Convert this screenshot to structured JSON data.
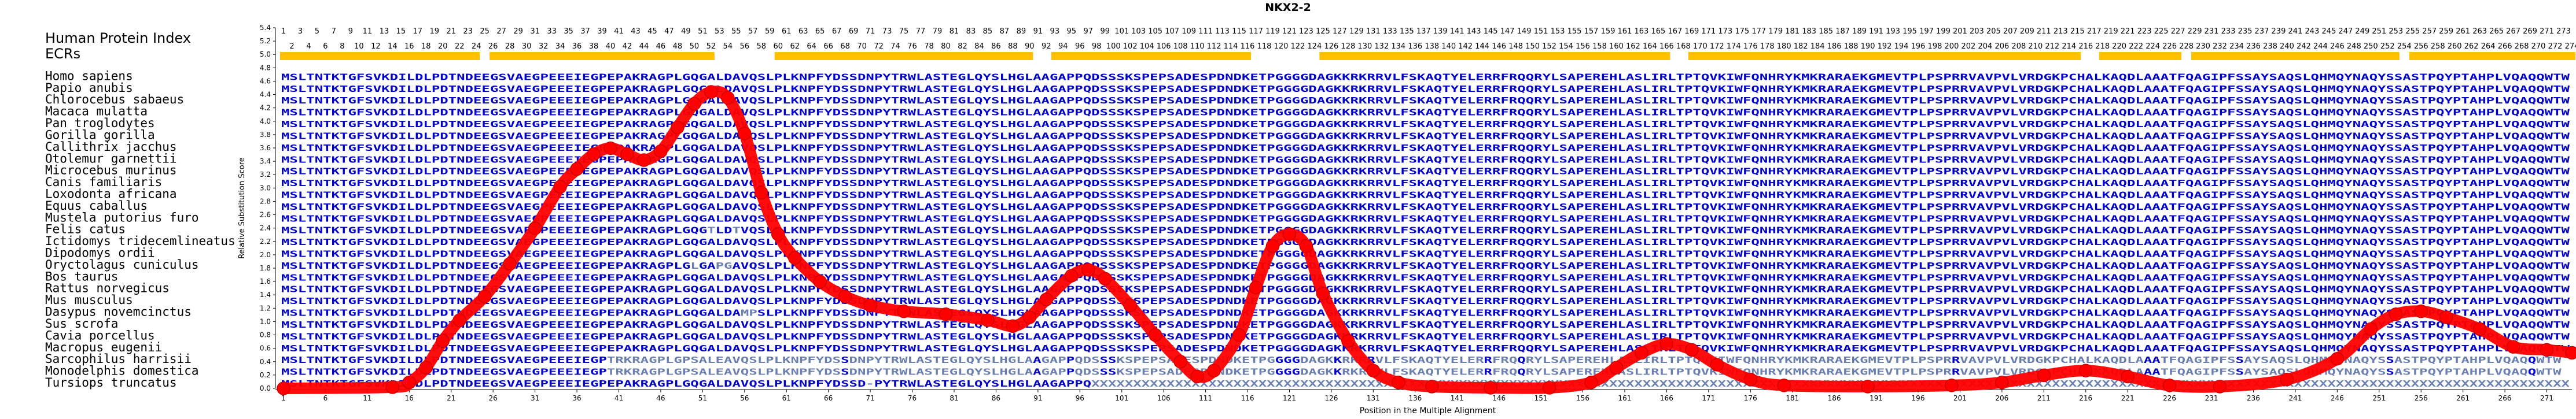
{
  "chart_data": {
    "type": "line",
    "title": "NKX2-2",
    "xlabel": "Position in the Multiple Alignment",
    "ylabel": "Relative Substitution Score",
    "xlim": [
      1,
      274
    ],
    "ylim": [
      0,
      5.4
    ],
    "y_ticks": [
      "0.0",
      "0.2",
      "0.4",
      "0.6",
      "0.8",
      "1.0",
      "1.2",
      "1.4",
      "1.6",
      "1.8",
      "2.0",
      "2.2",
      "2.4",
      "2.6",
      "2.8",
      "3.0",
      "3.2",
      "3.4",
      "3.6",
      "3.8",
      "4.0",
      "4.2",
      "4.4",
      "4.6",
      "4.8",
      "5.0",
      "5.2",
      "5.4"
    ],
    "x_ticks": [
      1,
      6,
      11,
      16,
      21,
      26,
      31,
      36,
      41,
      46,
      51,
      56,
      61,
      66,
      71,
      76,
      81,
      86,
      91,
      96,
      101,
      106,
      111,
      116,
      121,
      126,
      131,
      136,
      141,
      146,
      151,
      156,
      161,
      166,
      171,
      176,
      181,
      186,
      191,
      196,
      201,
      206,
      211,
      216,
      221,
      226,
      231,
      236,
      241,
      246,
      251,
      256,
      261,
      266,
      271
    ],
    "header_labels": [
      "Human Protein Index",
      "ECRs"
    ],
    "ecr_segments": [
      [
        1,
        24
      ],
      [
        26,
        52
      ],
      [
        60,
        90
      ],
      [
        93,
        116
      ],
      [
        125,
        166
      ],
      [
        169,
        215
      ],
      [
        218,
        227
      ],
      [
        229,
        253
      ],
      [
        255,
        274
      ]
    ],
    "series": [
      {
        "color": "#ff0000",
        "points": [
          [
            1,
            0.0
          ],
          [
            14,
            0.02
          ],
          [
            16,
            0.1
          ],
          [
            18,
            0.35
          ],
          [
            20,
            0.8
          ],
          [
            22,
            1.15
          ],
          [
            25,
            1.55
          ],
          [
            28,
            2.1
          ],
          [
            31,
            2.7
          ],
          [
            34,
            3.4
          ],
          [
            36,
            3.7
          ],
          [
            38,
            3.95
          ],
          [
            40,
            4.05
          ],
          [
            42,
            3.95
          ],
          [
            44,
            3.85
          ],
          [
            46,
            4.0
          ],
          [
            48,
            4.4
          ],
          [
            50,
            4.8
          ],
          [
            52,
            5.0
          ],
          [
            54,
            4.9
          ],
          [
            56,
            4.3
          ],
          [
            58,
            3.3
          ],
          [
            60,
            2.6
          ],
          [
            62,
            2.2
          ],
          [
            65,
            1.8
          ],
          [
            68,
            1.55
          ],
          [
            71,
            1.4
          ],
          [
            75,
            1.3
          ],
          [
            80,
            1.25
          ],
          [
            85,
            1.15
          ],
          [
            88,
            1.05
          ],
          [
            90,
            1.2
          ],
          [
            92,
            1.5
          ],
          [
            95,
            1.9
          ],
          [
            97,
            2.0
          ],
          [
            99,
            1.85
          ],
          [
            102,
            1.4
          ],
          [
            105,
            0.9
          ],
          [
            108,
            0.45
          ],
          [
            110,
            0.2
          ],
          [
            112,
            0.3
          ],
          [
            115,
            0.9
          ],
          [
            117,
            1.7
          ],
          [
            119,
            2.4
          ],
          [
            121,
            2.6
          ],
          [
            123,
            2.4
          ],
          [
            125,
            1.6
          ],
          [
            128,
            0.8
          ],
          [
            131,
            0.3
          ],
          [
            134,
            0.1
          ],
          [
            138,
            0.03
          ],
          [
            145,
            0.01
          ],
          [
            152,
            0.01
          ],
          [
            157,
            0.1
          ],
          [
            160,
            0.35
          ],
          [
            163,
            0.6
          ],
          [
            166,
            0.75
          ],
          [
            169,
            0.65
          ],
          [
            172,
            0.4
          ],
          [
            176,
            0.15
          ],
          [
            180,
            0.05
          ],
          [
            190,
            0.03
          ],
          [
            200,
            0.05
          ],
          [
            206,
            0.1
          ],
          [
            211,
            0.22
          ],
          [
            216,
            0.3
          ],
          [
            221,
            0.2
          ],
          [
            226,
            0.05
          ],
          [
            232,
            0.03
          ],
          [
            240,
            0.15
          ],
          [
            246,
            0.5
          ],
          [
            250,
            1.0
          ],
          [
            253,
            1.25
          ],
          [
            256,
            1.3
          ],
          [
            259,
            1.2
          ],
          [
            263,
            1.0
          ],
          [
            267,
            0.7
          ],
          [
            271,
            0.65
          ],
          [
            274,
            0.6
          ]
        ]
      }
    ]
  },
  "alignment": {
    "position_row_top": [
      "1",
      "3",
      "5",
      "7",
      "9",
      "11",
      "13",
      "15",
      "17",
      "19",
      "21",
      "23",
      "25",
      "27",
      "29",
      "31",
      "33",
      "35",
      "37",
      "39",
      "41",
      "43",
      "45",
      "47",
      "49",
      "51",
      "53",
      "55",
      "57",
      "59",
      "61",
      "63",
      "65",
      "67",
      "69",
      "71",
      "73",
      "75",
      "77",
      "79",
      "81",
      "83",
      "85",
      "87",
      "89",
      "91",
      "93",
      "95",
      "97",
      "99",
      "101",
      "103",
      "105",
      "107",
      "109",
      "111",
      "113",
      "115",
      "117",
      "119",
      "121",
      "123",
      "125",
      "127",
      "129",
      "131",
      "133",
      "135",
      "137",
      "139",
      "141",
      "143",
      "145",
      "147",
      "149",
      "151",
      "153",
      "155",
      "157",
      "159",
      "161",
      "163",
      "165",
      "167",
      "169",
      "171",
      "173",
      "175",
      "177",
      "179",
      "181",
      "183",
      "185",
      "187",
      "189",
      "191",
      "193",
      "195",
      "197",
      "199",
      "201",
      "203",
      "205",
      "207",
      "209",
      "211",
      "213",
      "215",
      "217",
      "219",
      "221",
      "223",
      "225",
      "227",
      "229",
      "231",
      "233",
      "235",
      "237",
      "239",
      "241",
      "243",
      "245",
      "247",
      "249",
      "251",
      "253",
      "255",
      "257",
      "259",
      "261",
      "263",
      "265",
      "267",
      "269",
      "271",
      "273"
    ],
    "position_row_bottom": [
      "2",
      "4",
      "6",
      "8",
      "10",
      "12",
      "14",
      "16",
      "18",
      "20",
      "22",
      "24",
      "26",
      "28",
      "30",
      "32",
      "34",
      "36",
      "38",
      "40",
      "42",
      "44",
      "46",
      "48",
      "50",
      "52",
      "54",
      "56",
      "58",
      "60",
      "62",
      "64",
      "66",
      "68",
      "70",
      "72",
      "74",
      "76",
      "78",
      "80",
      "82",
      "84",
      "86",
      "88",
      "90",
      "92",
      "94",
      "96",
      "98",
      "100",
      "102",
      "104",
      "106",
      "108",
      "110",
      "112",
      "114",
      "116",
      "118",
      "120",
      "122",
      "124",
      "126",
      "128",
      "130",
      "132",
      "134",
      "136",
      "138",
      "140",
      "142",
      "144",
      "146",
      "148",
      "150",
      "152",
      "154",
      "156",
      "158",
      "160",
      "162",
      "164",
      "166",
      "168",
      "170",
      "172",
      "174",
      "176",
      "178",
      "180",
      "182",
      "184",
      "186",
      "188",
      "190",
      "192",
      "194",
      "196",
      "198",
      "200",
      "202",
      "204",
      "206",
      "208",
      "210",
      "212",
      "214",
      "216",
      "218",
      "220",
      "222",
      "224",
      "226",
      "228",
      "230",
      "232",
      "234",
      "236",
      "238",
      "240",
      "242",
      "244",
      "246",
      "248",
      "250",
      "252",
      "254",
      "256",
      "258",
      "260",
      "262",
      "264",
      "266",
      "268",
      "270",
      "272",
      "274"
    ],
    "species": [
      {
        "name": "Homo sapiens",
        "seq": "MSLTNTKTGFSVKDILDLPDTNDEEGSVAEGPEEEIEGPEPAKRAGPLGQGALDAVQSLPLKNPFYDSSDNPYTRWLASTEGLQYSLHGLAAGAPPQDSSSKSPEPSADESPDNDKETPGGGGDAGKKRKRRVLFSKAQTYELERRFRQQRYLSAPEREHLASLIRLTPTQVKIWFQNHRYKMKRARAEKGMEVTPLPSPRRVAVPVLVRDGKPCHALKAQDLAAATFQAGIPFSSAYSAQSLQHMQYNAQYSSASTPQYPTAHPLVQAQQWTW"
      },
      {
        "name": "Papio anubis",
        "seq": "MSLTNTKTGFSVKDILDLPDTNDEEGSVAEGPEEEIEGPEPAKRAGPLGQGALDAVQSLPLKNPFYDSSDNPYTRWLASTEGLQYSLHGLAAGAPPQDSSSKSPEPSADESPDNDKETPGGGGDAGKKRKRRVLFSKAQTYELERRFRQQRYLSAPEREHLASLIRLTPTQVKIWFQNHRYKMKRARAEKGMEVTPLPSPRRVAVPVLVRDGKPCHALKAQDLAAATFQAGIPFSSAYSAQSLQHMQYNAQYSSASTPQYPTAHPLVQAQQWTW"
      },
      {
        "name": "Chlorocebus sabaeus",
        "seq": "MSLTNTKTGFSVKDILDLPDTNDEEGSVAEGPEEEIEGPEPAKRAGPLGQGALDAVQSLPLKNPFYDSSDNPYTRWLASTEGLQYSLHGLAAGAPPQDSSSKSPEPSADESPDNDKETPGGGGDAGKKRKRRVLFSKAQTYELERRFRQQRYLSAPEREHLASLIRLTPTQVKIWFQNHRYKMKRARAEKGMEVTPLPSPRRVAVPVLVRDGKPCHALKAQDLAAATFQAGIPFSSAYSAQSLQHMQYNAQYSSASTPQYPTAHPLVQAQQWTW"
      },
      {
        "name": "Macaca mulatta",
        "seq": "MSLTNTKTGFSVKDILDLPDTNDEEGSVAEGPEEEIEGPEPAKRAGPLGQGALDAVQSLPLKNPFYDSSDNPYTRWLASTEGLQYSLHGLAAGAPPQDSSSKSPEPSADESPDNDKETPGGGGDAGKKRKRRVLFSKAQTYELERRFRQQRYLSAPEREHLASLIRLTPTQVKIWFQNHRYKMKRARAEKGMEVTPLPSPRRVAVPVLVRDGKPCHALKAQDLAAATFQAGIPFSSAYSAQSLQHMQYNAQYSSASTPQYPTAHPLVQAQQWTW"
      },
      {
        "name": "Pan troglodytes",
        "seq": "MSLTNTKTGFSVKDILDLPDTNDEEGSVAEGPEEEIEGPEPAKRAGPLGQGALDAVQSLPLKNPFYDSSDNPYTRWLASTEGLQYSLHGLAAGAPPQDSSSKSPEPSADESPDNDKETPGGGGDAGKKRKRRVLFSKAQTYELERRFRQQRYLSAPEREHLASLIRLTPTQVKIWFQNHRYKMKRARAEKGMEVTPLPSPRRVAVPVLVRDGKPCHALKAQDLAAATFQAGIPFSSAYSAQSLQHMQYNAQYSSASTPQYPTAHPLVQAQQWTW"
      },
      {
        "name": "Gorilla gorilla",
        "seq": "MSLTNTKTGFSVKDILDLPDTNDEEGSVAEGPEEEIEGPEPAKRAGPLGQGALDAVQSLPLKNPFYDSSDNPYTRWLASTEGLQYSLHGLAAGAPPQDSSSKSPEPSADESPDNDKETPGGGGDAGKKRKRRVLFSKAQTYELERRFRQQRYLSAPEREHLASLIRLTPTQVKIWFQNHRYKMKRARAEKGMEVTPLPSPRRVAVPVLVRDGKPCHALKAQDLAAATFQAGIPFSSAYSAQSLQHMQYNAQYSSASTPQYPTAHPLVQAQQWTW"
      },
      {
        "name": "Callithrix jacchus",
        "seq": "MSLTNTKTGFSVKDILDLPDTNDEEGSVAEGPEEEIEGPEPAKRAGPLGQGALDAVQSLPLKNPFYDSSDNPYTRWLASTEGLQYSLHGLAAGAPPQDSSSKSPEPSADESPDNDKETPGGGGDAGKKRKRRVLFSKAQTYELERRFRQQRYLSAPEREHLASLIRLTPTQVKIWFQNHRYKMKRARAEKGMEVTPLPSPRRVAVPVLVRDGKPCHALKAQDLAAATFQAGIPFSSAYSAQSLQHMQYNAQYSSASTPQYPTAHPLVQAQQWTW"
      },
      {
        "name": "Otolemur garnettii",
        "seq": "MSLTNTKTGFSVKDILDLPDTNDEEGSVAEGPEEEIEGPEPAKRAGPLGQGALDAVQSLPLKNPFYDSSDNPYTRWLASTEGLQYSLHGLAAGAPPQDSSSKSPEPSADESPDNDKETPGGGGDAGKKRKRRVLFSKAQTYELERRFRQQRYLSAPEREHLASLIRLTPTQVKIWFQNHRYKMKRARAEKGMEVTPLPSPRRVAVPVLVRDGKPCHALKAQDLAAATFQAGIPFSSAYSAQSLQHMQYNAQYSSASTPQYPTAHPLVQAQQWTW"
      },
      {
        "name": "Microcebus murinus",
        "seq": "MSLTNTKTGFSVKDILDLPDTNDEEGSVAEGPEEEIEGPEPAKRAGPLGQGALDAVQSLPLKNPFYDSSDNPYTRWLASTEGLQYSLHGLAAGAPPQDSSSKSPEPSADESPDNDKETPGGGGDAGKKRKRRVLFSKAQTYELERRFRQQRYLSAPEREHLASLIRLTPTQVKIWFQNHRYKMKRARAEKGMEVTPLPSPRRVAVPVLVRDGKPCHALKAQDLAAATFQAGIPFSSAYSAQSLQHMQYNAQYSSASTPQYPTAHPLVQAQQWTW"
      },
      {
        "name": "Canis familiaris",
        "seq": "MSLTNTKTGFSVKDILDLPDTNDEEGSVAEGPEEEIEGPEPAKRAGPLGQGALDAVQSLPLKNPFYDSSDNPYTRWLASTEGLQYSLHGLAAGAPPQDSSSKSPEPSADESPDNDKETPGGGGDAGKKRKRRVLFSKAQTYELERRFRQQRYLSAPEREHLASLIRLTPTQVKIWFQNHRYKMKRARAEKGMEVTPLPSPRRVAVPVLVRDGKPCHALKAQDLAAATFQAGIPFSSAYSAQSLQHMQYNAQYSSASTPQYPTAHPLVQAQQWTW"
      },
      {
        "name": "Loxodonta africana",
        "seq": "MSLTNTKTGFSVKDILDLPDTNDEEGSVAEGPEEEIEGPEPAKRAGPLGQGALDAVQSLPLKNPFYDSSDNPYTRWLASTEGLQYSLHGLAAGAPPQDSSSKSPEPSADESPDNDKETPGGGGDAGKKRKRRVLFSKAQTYELERRFRQQRYLSAPEREHLASLIRLTPTQVKIWFQNHRYKMKRARAEKGMEVTPLPSPRRVAVPVLVRDGKPCHALKAQDLAAATFQAGIPFSSAYSAQSLQHMQYNAQYSSASTPQYPTAHPLVQAQQWTW"
      },
      {
        "name": "Equus caballus",
        "seq": "MSLTNTKTGFSVKDILDLPDTNDEEGSVAEGPEEEIEGPEPAKRAGPLGQGALDAVQSLPLKNPFYDSSDNPYTRWLASTEGLQYSLHGLAAGAPPQDSSSKSPEPSADESPDNDKETPGGGGDAGKKRKRRVLFSKAQTYELERRFRQQRYLSAPEREHLASLIRLTPTQVKIWFQNHRYKMKRARAEKGMEVTPLPSPRRVAVPVLVRDGKPCHALKAQDLAAATFQAGIPFSSAYSAQSLQHMQYNAQYSSASTPQYPTAHPLVQAQQWTW"
      },
      {
        "name": "Mustela putorius furo",
        "seq": "MSLTNTKTGFSVKDILDLPDTNDEEGSVAEGPEEEIEGPEPAKRAGPLGQGALDAVQSLPLKNPFYDSSDNPYTRWLASTEGLQYSLHGLAAGAPPQDSSSKSPEPSADESPDNDKETPGGGGDAGKKRKRRVLFSKAQTYELERRFRQQRYLSAPEREHLASLIRLTPTQVKIWFQNHRYKMKRARAEKGMEVTPLPSPRRVAVPVLVRDGKPCHALKAQDLAAATFQAGIPFSSAYSAQSLQHMQYNAQYSSASTPQYPTAHPLVQAQQWTW"
      },
      {
        "name": "Felis catus",
        "seq": "MSLTNTKTGFSVKDILDLPDTNDEEGSVAEGPEEEIEGPEPAKRAGPLGQGTLDTVQSLPLKNPFYDSSDNPYTRWLASTEGLQYSLHGLAAGAPPQDSSSKSPEPSADESPDNDKETPGGGGDAGKKRKRRVLFSKAQTYELERRFRQQRYLSAPEREHLASLIRLTPTQVKIWFQNHRYKMKRARAEKGMEVTPLPSPRRVAVPVLVRDGKPCHALKAQDLAAATFQAGIPFSSAYSAQSLQHMQYNAQYSSASTPQYPTAHPLVQAQQWTW"
      },
      {
        "name": "Ictidomys tridecemlineatus",
        "seq": "MSLTNTKTGFSVKDILDLPDTNDEEGSVAEGPEEEIEGPEPAKRAGPLGQGALDAVQSLPLKNPFYDSSDNPYTRWLASTEGLQYSLHGLAAGAPPQDSSSKSPEPSADESPDNDKETPGGGGDAGKKRKRRVLFSKAQTYELERRFRQQRYLSAPEREHLASLIRLTPTQVKIWFQNHRYKMKRARAEKGMEVTPLPSPRRVAVPVLVRDGKPCHALKAQDLAAATFQAGIPFSSAYSAQSLQHMQYNAQYSSASTPQYPTAHPLVQAQQWTW"
      },
      {
        "name": "Dipodomys ordii",
        "seq": "MSLTNTKTGFSVKDILDLPDTNDEEGSVAEGPEEEIEGPEPAKRAGPLGQGALDAVQSLPLKNPFYDSSDNPYTRWLASTEGLQYSLHGLAAGAPPQDSSSKSPEPSADESPDNDKETPGGGGDAGKKRKRRVLFSKAQTYELERRFRQQRYLSAPEREHLASLIRLTPTQVKIWFQNHRYKMKRARAEKGMEVTPLPSPRRVAVPVLVRDGKPCHALKAQDLAAATFQAGIPFSSAYSAQSLQHMQYNAQYSSASTPQYPTAHPLVQAQQWTW"
      },
      {
        "name": "Oryctolagus cuniculus",
        "seq": "MSLTNTKTGFSVKDILDLPDTNDEEGSVAEGPEEEIEGPEPAKRAGPLGLGAPGAVQSLPLKNPFYDSSDNPYTRWLASTEGLQYSLHGLAAGAPPQDSSSKSPEPSADESPDNDKETPGGGGDAGKKRKRRVLFSKAQTYELERRFRQQRYLSAPEREHLASLIRLTPTQVKIWFQNHRYKMKRARAEKGMEVTPLPSPRRVAVPVLVRDGKPCHALKAQDLAAATFQAGIPFSSAYSAQSLQHMQYNAQYSSASTPQYPTAHPLVQAQQWTW"
      },
      {
        "name": "Bos taurus",
        "seq": "MSLTNTKTGFSVKDILDLPDTNDEEGSVAEGPEEEIEGPEPAKRAGPLGQGALDAVQSLPLKNPFYDSSDNPYTRWLASTEGLQYSLHGLAAGAPPQDSSSKSPEPSADESPDNDKETPGGGGDAGKKRKRRVLFSKAQTYELERRFRQQRYLSAPEREHLASLIRLTPTQVKIWFQNHRYKMKRARAEKGMEVTPLPSPRRVAVPVLVRDGKPCHALKAQDLAAATFQAGIPFSSAYSAQSLQHMQYNAQYSSASTPQYPTAHPLVQAQQWTW"
      },
      {
        "name": "Rattus norvegicus",
        "seq": "MSLTNTKTGFSVKDILDLPDTNDEEGSVAEGPEEEIEGPEPAKRAGPLGQGALDAVQSLPLKNPFYDSSDNPYTRWLASTEGLQYSLHGLAAGAPPQDSSSKSPEPSADESPDNDKETPGGGGDAGKKRKRRVLFSKAQTYELERRFRQQRYLSAPEREHLASLIRLTPTQVKIWFQNHRYKMKRARAEKGMEVTPLPSPRRVAVPVLVRDGKPCHALKAQDLAAATFQAGIPFSSAYSAQSLQHMQYNAQYSSASTPQYPTAHPLVQAQQWTW"
      },
      {
        "name": "Mus musculus",
        "seq": "MSLTNTKTGFSVKDILDLPDTNDEEGSVAEGPEEEIEGPEPAKRAGPLGQGALDAVQSLPLKNPFYDSSDNPYTRWLASTEGLQYSLHGLAAGAPPQDSSSKSPEPSADESPDNDKETPGGGGDAGKKRKRRVLFSKAQTYELERRFRQQRYLSAPEREHLASLIRLTPTQVKIWFQNHRYKMKRARAEKGMEVTPLPSPRRVAVPVLVRDGKPCHALKAQDLAAATFQAGIPFSSAYSAQSLQHMQYNAQYSSASTPQYPTAHPLVQAQQWTW"
      },
      {
        "name": "Dasypus novemcinctus",
        "seq": "MSLTNTKTGFSVKDILDLPDTNDEEGSVAEGPEEEIEGPEPAKRAGPLGQGALDAMPSLPLKNPFYDSSDNPYTRWLASTEGLQYSLHGLAAGAPPQDSSSKSPEPSADESPDNDKETPGGGGDAGKKRKRRVLFSKAQTYELERRFRQQRYLSAPEREHLASLIRLTPTQVKIWFQNHRYKMKRARAEKGMEVTPLPSPRRVAVPVLVRDGKPCHALKAQDLAAATFQAGIPFSSAYSAQSLQHMQYNAQYSSASTPQYPTAHPLVQAQQWTW"
      },
      {
        "name": "Sus scrofa",
        "seq": "MSLTNTKTGFSVKDILDLPDTNDEEGSVAEGPEEEIEGPEPAKRAGPLGQGALDAVQSLPLKNPFYDSSDNPYTRWLASTEGLQYSLHGLAAGAPPQDSSSKSPEPSADESPDNDKETPGGGGDAGKKRKRRVLFSKAQTYELERRFRQQRYLSAPEREHLASLIRLTPTQVKIWFQNHRYKMKRARAEKGMEVTPLPSPRRVAVPVLVRDGKPCHALKAQDLAAATFQAGIPFSSAYSAQSLQHMQYNAQYSSASTPQYPTAHPLVQAQQWTW"
      },
      {
        "name": "Cavia porcellus",
        "seq": "MSLTNTKTGFSVKDILDLPDTNDEEGSVAEGPEEEIEGPEPAKRAGPLGQGALDAVQSLPLKNPFYDSSDNPYTRWLASTEGLQYSLHGLAAGAPPQDSSSKSPEPSADESPDNDKETPGGGGDAGKKRKRRVLFSKAQTYELERRFRQQRYLSAPEREHLASLIRLTPTQVKIWFQNHRYKMKRARAEKGMEVTPLPSPRRVAVPVLVRDGKPCHALKAQDLAAATFQAGIPFSSAYSAQSLQHMQYNAQYSSASTPQYPTAHPLVQAQQWTW"
      },
      {
        "name": "Macropus eugenii",
        "seq": "MSLTNTKTGFSVKDILDLPDTNDEEGSVAEGPEEEIEGPEPAKRAGPLGQGALDAVQSLPLKNPFYDSSDNPYTRWLASTEGLQYSLHGLAAGAPPQDSSSKSPEPSADESPDNDKETPGGGGDAGKKRKRRVLFSKAQTYELERRFRQQRYLSAPEREHLASLIRLTPTQVKIWFQNHRYKMKRARAEKGMEVTPLPSPRRVAVPVLVRDGKPCHALKAQDLAAATFQAGIPFSSAYSAQSLQHMQYNAQYSSASTPQYPTAHPLVQAQQWTW"
      },
      {
        "name": "Sarcophilus harrisii",
        "seq": "MSLTNTKTGFSVKDILDLPDTNDEEGSVAEGPEEEIEGPTRKRAGPLGPSALEAVQSLPLKNPFYDSSDNPYTRWLASTEGLQYSLHGLAAGAPPQDSSSKSPEPSADESPDNDKETPGGGGDAGKKRKRRVLFSKAQTYELERRFRQQRYLSAPEREHLASLIRLTPTQVKIWFQNHRYKMKRARAEKGMEVTPLPSPRRVAVPVLVRDGKPCHALKAQDLAAATFQAGIPFSSAYSAQSLQHMQYNAQYSSASTPQYPTAHPLVQAQQWTW"
      },
      {
        "name": "Monodelphis domestica",
        "seq": "MSLTNTKTGFSVKDILDLPDTNDEEGSVAEGPEEEIEGPTRKRAGPLGPSALEAVQSLPLKNPFYDSSDNPYTRWLASTEGLQYSLHGLAAGAPPQDSSSKSPEPSADESPDNDKETPGGGGDAGKKRKRRVLFSKAQTYELERRFRQQRYLSAPEREHLASLIRLTPTQVKIWFQNHRYKMKRARAEKGMEVTPLPSPRRVAVPVLVRDGKPCHALKAQDLAAATFQAGIPFSSAYSAQSLQHMQYNAQYSSASTPQYPTAHPLVQAQQWTW"
      },
      {
        "name": "Tursiops truncatus",
        "seq": "MSLTNTKTGFSVKDILDLPDTNDEEGSVAEGPEEEIEGPEPAKRAGPLGQGALDAVQSLPLKNPFYDSSD-PYTRWLASTEGLQYSLHGLAAGAPPQXXXXXXXXXXXXXXXXXXXXXXXXXXXXXXXXXXXXXXXXXXXXXXXXXXXXXXXXXXXXXXXXXXXXXXXXXXXXXXXXXXXXXXXXXXXXXXXXXXXXXXXXXXXXXXXXXXXXXXXXXXXXXXXXXXXXXXXXXXXXXXXXXXXXXXXXXXXXXXXXXXXXXXXXXXXXXXXXX"
      }
    ],
    "colors": {
      "curve": "#ff0000",
      "residue": "#0000c8",
      "residue_variable": "#6a7fb0",
      "ecr_bar": "#ffc000",
      "axis": "#000000"
    }
  }
}
